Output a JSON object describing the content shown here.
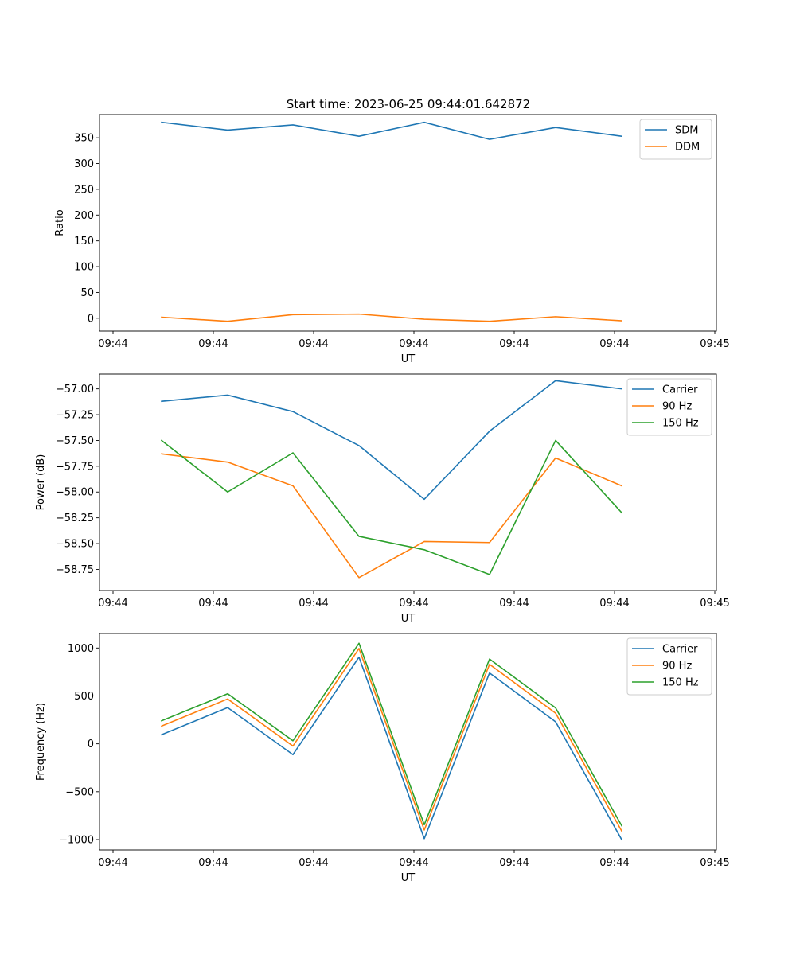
{
  "figure": {
    "title": "Start time: 2023-06-25 09:44:01.642872"
  },
  "chart_data": [
    {
      "type": "line",
      "xlabel": "UT",
      "ylabel": "Ratio",
      "x_tick_labels": [
        "09:44",
        "09:44",
        "09:44",
        "09:44",
        "09:44",
        "09:44",
        "09:45"
      ],
      "yticks": [
        0,
        50,
        100,
        150,
        200,
        250,
        300,
        350
      ],
      "ylim": [
        -25,
        395
      ],
      "legend_position": "upper right",
      "series": [
        {
          "name": "SDM",
          "color": "#1f77b4",
          "values": [
            380,
            365,
            375,
            353,
            380,
            347,
            370,
            353
          ]
        },
        {
          "name": "DDM",
          "color": "#ff7f0e",
          "values": [
            2,
            -6,
            7,
            8,
            -2,
            -6,
            3,
            -5
          ]
        }
      ]
    },
    {
      "type": "line",
      "xlabel": "UT",
      "ylabel": "Power (dB)",
      "x_tick_labels": [
        "09:44",
        "09:44",
        "09:44",
        "09:44",
        "09:44",
        "09:44",
        "09:45"
      ],
      "yticks": [
        -57.0,
        -57.25,
        -57.5,
        -57.75,
        -58.0,
        -58.25,
        -58.5,
        -58.75
      ],
      "ytick_labels": [
        "−57.00",
        "−57.25",
        "−57.50",
        "−57.75",
        "−58.00",
        "−58.25",
        "−58.50",
        "−58.75"
      ],
      "ylim": [
        -58.955,
        -56.856
      ],
      "legend_position": "upper right",
      "series": [
        {
          "name": "Carrier",
          "color": "#1f77b4",
          "values": [
            -57.12,
            -57.06,
            -57.22,
            -57.55,
            -58.07,
            -57.41,
            -56.92,
            -57.0
          ]
        },
        {
          "name": "90 Hz",
          "color": "#ff7f0e",
          "values": [
            -57.63,
            -57.71,
            -57.94,
            -58.83,
            -58.48,
            -58.49,
            -57.67,
            -57.94
          ]
        },
        {
          "name": "150 Hz",
          "color": "#2ca02c",
          "values": [
            -57.5,
            -58.0,
            -57.62,
            -58.43,
            -58.56,
            -58.8,
            -57.5,
            -58.2
          ]
        }
      ]
    },
    {
      "type": "line",
      "xlabel": "UT",
      "ylabel": "Frequency (Hz)",
      "x_tick_labels": [
        "09:44",
        "09:44",
        "09:44",
        "09:44",
        "09:44",
        "09:44",
        "09:45"
      ],
      "yticks": [
        -1000,
        -500,
        0,
        500,
        1000
      ],
      "ytick_labels": [
        "−1000",
        "−500",
        "0",
        "500",
        "1000"
      ],
      "ylim": [
        -1108,
        1152
      ],
      "legend_position": "upper right",
      "series": [
        {
          "name": "Carrier",
          "color": "#1f77b4",
          "values": [
            95,
            378,
            -113,
            905,
            -990,
            740,
            230,
            -1000
          ]
        },
        {
          "name": "90 Hz",
          "color": "#ff7f0e",
          "values": [
            185,
            468,
            -23,
            995,
            -900,
            830,
            320,
            -910
          ]
        },
        {
          "name": "150 Hz",
          "color": "#2ca02c",
          "values": [
            240,
            523,
            32,
            1050,
            -845,
            885,
            375,
            -855
          ]
        }
      ]
    }
  ]
}
